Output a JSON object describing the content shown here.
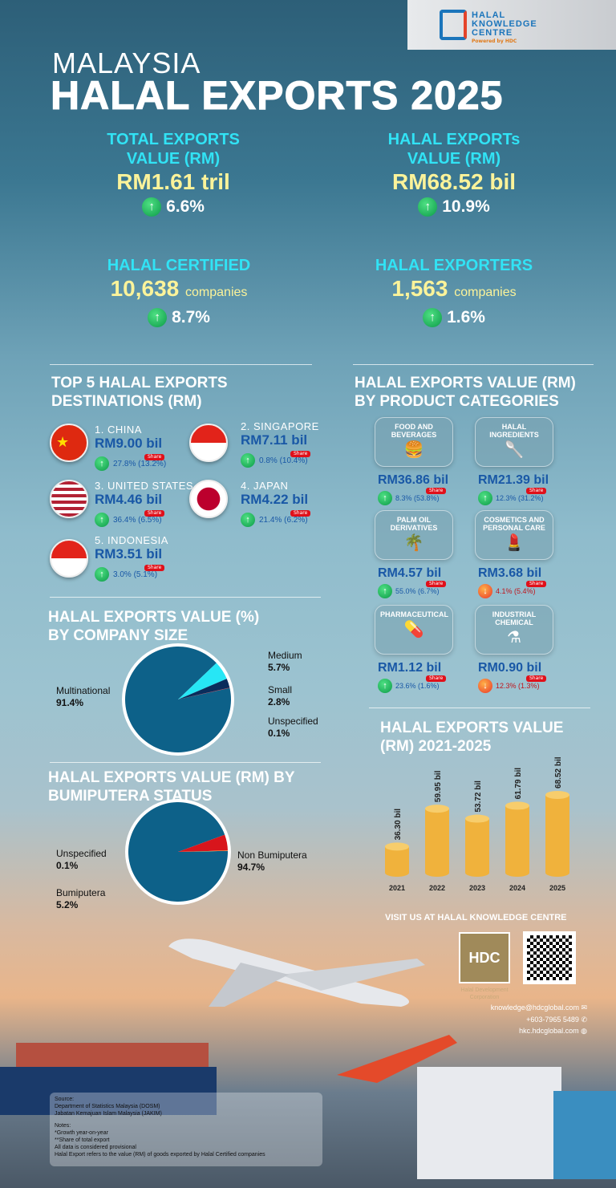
{
  "logo": {
    "line1": "HALAL",
    "line2": "KNOWLEDGE",
    "line3": "CENTRE",
    "powered": "Powered by HDC"
  },
  "title": {
    "line1": "MALAYSIA",
    "line2": "HALAL EXPORTS 2025"
  },
  "kpis": [
    {
      "label1": "TOTAL EXPORTS",
      "label2": "VALUE (RM)",
      "value": "RM1.61 tril",
      "unit": "",
      "change": "6.6%",
      "direction": "up"
    },
    {
      "label1": "HALAL EXPORTs",
      "label2": "VALUE (RM)",
      "value": "RM68.52 bil",
      "unit": "",
      "change": "10.9%",
      "direction": "up"
    },
    {
      "label1": "HALAL CERTIFIED",
      "label2": "",
      "value": "10,638",
      "unit": "companies",
      "change": "8.7%",
      "direction": "up"
    },
    {
      "label1": "HALAL EXPORTERS",
      "label2": "",
      "value": "1,563",
      "unit": "companies",
      "change": "1.6%",
      "direction": "up"
    }
  ],
  "destinations": {
    "title1": "TOP 5 HALAL EXPORTS",
    "title2": "DESTINATIONS (RM)",
    "share_label": "Share",
    "items": [
      {
        "name": "1. CHINA",
        "value": "RM9.00 bil",
        "growth": "27.8% (13.2%)",
        "direction": "up"
      },
      {
        "name": "2. SINGAPORE",
        "value": "RM7.11 bil",
        "growth": "0.8% (10.4%)",
        "direction": "up"
      },
      {
        "name": "3. UNITED STATES",
        "value": "RM4.46 bil",
        "growth": "36.4% (6.5%)",
        "direction": "up"
      },
      {
        "name": "4. JAPAN",
        "value": "RM4.22 bil",
        "growth": "21.4% (6.2%)",
        "direction": "up"
      },
      {
        "name": "5. INDONESIA",
        "value": "RM3.51 bil",
        "growth": "3.0% (5.1%)",
        "direction": "up"
      }
    ]
  },
  "categories": {
    "title1": "HALAL EXPORTS VALUE (RM)",
    "title2": "BY PRODUCT CATEGORIES",
    "share_label": "Share",
    "items": [
      {
        "name": "FOOD AND BEVERAGES",
        "icon": "food-icon",
        "value": "RM36.86 bil",
        "growth": "8.3% (53.8%)",
        "direction": "up"
      },
      {
        "name": "HALAL INGREDIENTS",
        "icon": "spoon-icon",
        "value": "RM21.39 bil",
        "growth": "12.3% (31.2%)",
        "direction": "up"
      },
      {
        "name": "PALM OIL DERIVATIVES",
        "icon": "palm-tree-icon",
        "value": "RM4.57 bil",
        "growth": "55.0% (6.7%)",
        "direction": "up"
      },
      {
        "name": "COSMETICS AND PERSONAL CARE",
        "icon": "cosmetics-icon",
        "value": "RM3.68 bil",
        "growth": "4.1% (5.4%)",
        "direction": "down"
      },
      {
        "name": "PHARMACEUTICAL",
        "icon": "medicine-icon",
        "value": "RM1.12 bil",
        "growth": "23.6% (1.6%)",
        "direction": "up"
      },
      {
        "name": "INDUSTRIAL CHEMICAL",
        "icon": "flask-icon",
        "value": "RM0.90 bil",
        "growth": "12.3% (1.3%)",
        "direction": "down"
      }
    ]
  },
  "chart_data": [
    {
      "type": "pie",
      "title": "HALAL EXPORTS VALUE (%) BY COMPANY SIZE",
      "title1": "HALAL EXPORTS VALUE (%)",
      "title2": "BY COMPANY SIZE",
      "slices": [
        {
          "label": "Multinational",
          "value": 91.4,
          "text": "91.4%",
          "color": "#0d6189"
        },
        {
          "label": "Medium",
          "value": 5.7,
          "text": "5.7%",
          "color": "#27e6f5"
        },
        {
          "label": "Small",
          "value": 2.8,
          "text": "2.8%",
          "color": "#0a2d5c"
        },
        {
          "label": "Unspecified",
          "value": 0.1,
          "text": "0.1%",
          "color": "#b01020"
        }
      ]
    },
    {
      "type": "pie",
      "title": "HALAL EXPORTS VALUE (RM) BY BUMIPUTERA STATUS",
      "title1": "HALAL EXPORTS VALUE (RM) BY",
      "title2": "BUMIPUTERA STATUS",
      "slices": [
        {
          "label": "Non Bumiputera",
          "value": 94.7,
          "text": "94.7%",
          "color": "#0d6189"
        },
        {
          "label": "Bumiputera",
          "value": 5.2,
          "text": "5.2%",
          "color": "#d8151c"
        },
        {
          "label": "Unspecified",
          "value": 0.1,
          "text": "0.1%",
          "color": "#f0e040"
        }
      ]
    },
    {
      "type": "bar",
      "title": "HALAL EXPORTS VALUE (RM) 2021-2025",
      "title1": "HALAL EXPORTS VALUE",
      "title2": "(RM) 2021-2025",
      "categories": [
        "2021",
        "2022",
        "2023",
        "2024",
        "2025"
      ],
      "values": [
        36.3,
        59.95,
        53.72,
        61.79,
        68.52
      ],
      "labels": [
        "36.30 bil",
        "59.95 bil",
        "53.72 bil",
        "61.79 bil",
        "68.52 bil"
      ],
      "ylim": [
        20,
        70
      ],
      "color": "#f0b23c"
    }
  ],
  "visit": {
    "title": "VISIT US AT HALAL KNOWLEDGE CENTRE",
    "hdc": "HDC",
    "hdc_sub1": "Halal Development",
    "hdc_sub2": "Corporation",
    "email": "knowledge@hdcglobal.com",
    "phone": "+603-7965 5489",
    "web": "hkc.hdcglobal.com"
  },
  "notes": {
    "source_label": "Source:",
    "source1": "Department of Statistics Malaysia (DOSM)",
    "source2": "Jabatan Kemajuan Islam Malaysia (JAKIM)",
    "notes_label": "Notes:",
    "n1": "*Growth year-on-year",
    "n2": "**Share of  total export",
    "n3": "All data is considered provisional",
    "n4": "Halal Export refers to the value (RM) of goods exported by Halal Certified companies"
  }
}
